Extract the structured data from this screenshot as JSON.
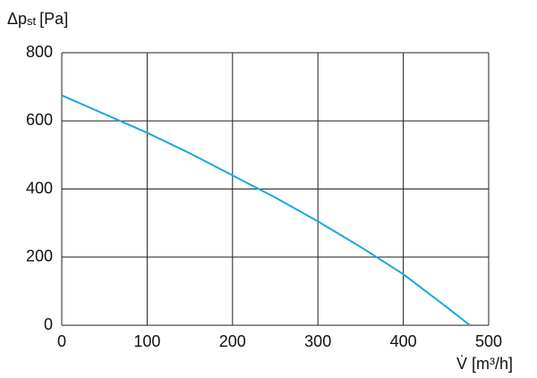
{
  "chart_data": {
    "type": "line",
    "y_label": {
      "symbol": "Δp",
      "subscript": "st",
      "unit": "[Pa]"
    },
    "x_label": "V̇ [m³/h]",
    "x": [
      0,
      50,
      100,
      150,
      200,
      250,
      300,
      350,
      400,
      450,
      478
    ],
    "series": [
      {
        "color": "#1aa7dc",
        "values": [
          675,
          620,
          565,
          505,
          440,
          375,
          305,
          230,
          150,
          55,
          0
        ]
      }
    ],
    "xlim": [
      0,
      500
    ],
    "xticks": [
      0,
      100,
      200,
      300,
      400,
      500
    ],
    "ylim": [
      0,
      800
    ],
    "yticks": [
      0,
      200,
      400,
      600,
      800
    ],
    "grid": true
  }
}
